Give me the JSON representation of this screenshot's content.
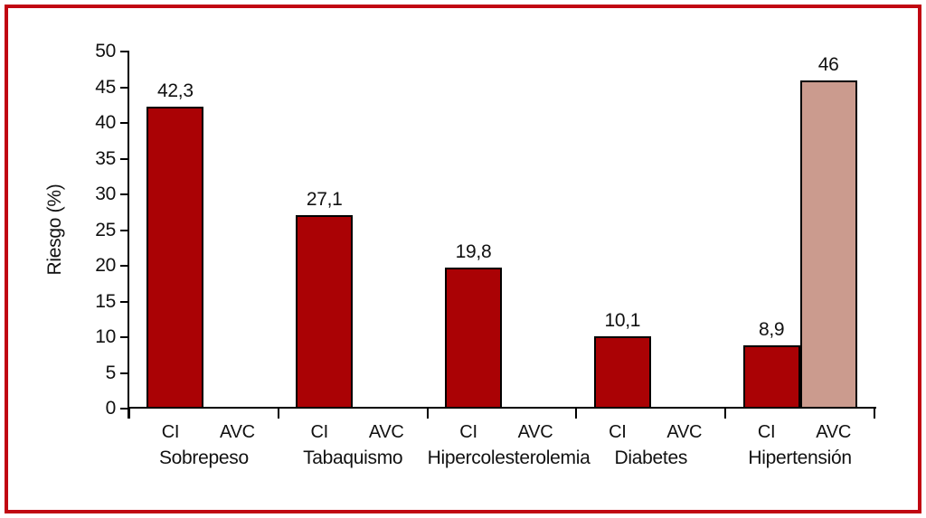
{
  "chart_data": {
    "type": "bar",
    "title": "",
    "xlabel": "",
    "ylabel": "Riesgo (%)",
    "ylim": [
      0,
      50
    ],
    "y_ticks": [
      0,
      5,
      10,
      15,
      20,
      25,
      30,
      35,
      40,
      45,
      50
    ],
    "grid": "off",
    "legend": "none",
    "categories": [
      "Sobrepeso",
      "Tabaquismo",
      "Hipercolesterolemia",
      "Diabetes",
      "Hipertensión"
    ],
    "series": [
      {
        "name": "CI",
        "color": "#aa0205",
        "values": [
          42.3,
          27.1,
          19.8,
          10.1,
          8.9
        ],
        "value_labels": [
          "42,3",
          "27,1",
          "19,8",
          "10,1",
          "8,9"
        ]
      },
      {
        "name": "AVC",
        "color": "#cb9b8e",
        "values": [
          0,
          0,
          0,
          0,
          46
        ],
        "value_labels": [
          "",
          "",
          "",
          "",
          "46"
        ]
      }
    ],
    "bar_outline_color": "#000000",
    "frame_color": "#c10712",
    "axis_color": "#000000"
  }
}
